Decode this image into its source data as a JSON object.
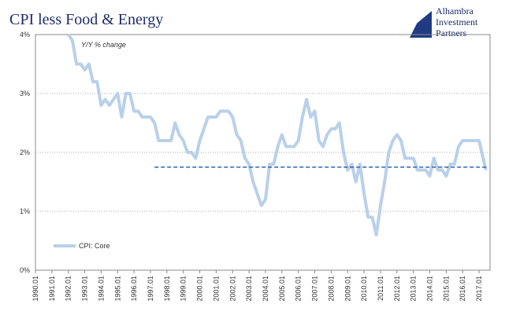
{
  "chart_data": {
    "type": "line",
    "title": "CPI less Food & Energy",
    "annotation": "Y/Y % change",
    "logo": [
      "Alhambra",
      "Investment",
      "Partners"
    ],
    "x": [
      1992.01,
      1992.04,
      1992.07,
      1992.1,
      1993.01,
      1993.04,
      1993.07,
      1993.1,
      1994.01,
      1994.04,
      1994.07,
      1994.1,
      1995.01,
      1995.04,
      1995.07,
      1995.1,
      1996.01,
      1996.04,
      1996.07,
      1996.1,
      1997.01,
      1997.04,
      1997.07,
      1997.1,
      1998.01,
      1998.04,
      1998.07,
      1998.1,
      1999.01,
      1999.04,
      1999.07,
      1999.1,
      2000.01,
      2000.04,
      2000.07,
      2000.1,
      2001.01,
      2001.04,
      2001.07,
      2001.1,
      2002.01,
      2002.04,
      2002.07,
      2002.1,
      2003.01,
      2003.04,
      2003.07,
      2003.1,
      2004.01,
      2004.04,
      2004.07,
      2004.1,
      2005.01,
      2005.04,
      2005.07,
      2005.1,
      2006.01,
      2006.04,
      2006.07,
      2006.1,
      2007.01,
      2007.04,
      2007.07,
      2007.1,
      2008.01,
      2008.04,
      2008.07,
      2008.1,
      2009.01,
      2009.04,
      2009.07,
      2009.1,
      2010.01,
      2010.04,
      2010.07,
      2010.1,
      2011.01,
      2011.04,
      2011.07,
      2011.1,
      2012.01,
      2012.04,
      2012.07,
      2012.1,
      2013.01,
      2013.04,
      2013.07,
      2013.1,
      2014.01,
      2014.04,
      2014.07,
      2014.1,
      2015.01,
      2015.04,
      2015.07,
      2015.1,
      2016.01,
      2016.04,
      2016.07,
      2016.1,
      2017.01,
      2017.04,
      2017.06
    ],
    "series": [
      {
        "name": "CPI: Core",
        "color": "#b9d0ea",
        "values": [
          4.0,
          3.9,
          3.5,
          3.5,
          3.4,
          3.5,
          3.2,
          3.2,
          2.8,
          2.9,
          2.8,
          2.9,
          3.0,
          2.6,
          3.0,
          3.0,
          2.7,
          2.7,
          2.6,
          2.6,
          2.6,
          2.5,
          2.2,
          2.2,
          2.2,
          2.2,
          2.5,
          2.3,
          2.2,
          2.0,
          2.0,
          1.9,
          2.2,
          2.4,
          2.6,
          2.6,
          2.6,
          2.7,
          2.7,
          2.7,
          2.6,
          2.3,
          2.2,
          1.9,
          1.8,
          1.5,
          1.3,
          1.1,
          1.2,
          1.8,
          1.8,
          2.1,
          2.3,
          2.1,
          2.1,
          2.1,
          2.2,
          2.6,
          2.9,
          2.6,
          2.7,
          2.2,
          2.1,
          2.3,
          2.4,
          2.4,
          2.5,
          2.0,
          1.7,
          1.8,
          1.5,
          1.8,
          1.3,
          0.9,
          0.9,
          0.6,
          1.1,
          1.5,
          2.0,
          2.2,
          2.3,
          2.2,
          1.9,
          1.9,
          1.9,
          1.7,
          1.7,
          1.7,
          1.6,
          1.9,
          1.7,
          1.7,
          1.6,
          1.8,
          1.8,
          2.1,
          2.2,
          2.2,
          2.2,
          2.2,
          2.2,
          1.9,
          1.7
        ]
      }
    ],
    "reference_line": {
      "value": 1.75,
      "from": 1997.04,
      "color": "#2e62ad"
    },
    "xlim": [
      1990.01,
      2017.09
    ],
    "xticks": [
      1990.01,
      1991.01,
      1992.01,
      1993.01,
      1994.01,
      1995.01,
      1996.01,
      1997.01,
      1998.01,
      1999.01,
      2000.01,
      2001.01,
      2002.01,
      2003.01,
      2004.01,
      2005.01,
      2006.01,
      2007.01,
      2008.01,
      2009.01,
      2010.01,
      2011.01,
      2012.01,
      2013.01,
      2014.01,
      2015.01,
      2016.01,
      2017.01
    ],
    "ylim": [
      0,
      4
    ],
    "yticks": [
      {
        "value": 0,
        "label": "0%"
      },
      {
        "value": 1,
        "label": "1%"
      },
      {
        "value": 2,
        "label": "2%"
      },
      {
        "value": 3,
        "label": "3%"
      },
      {
        "value": 4,
        "label": "4%"
      }
    ],
    "grid": true
  }
}
